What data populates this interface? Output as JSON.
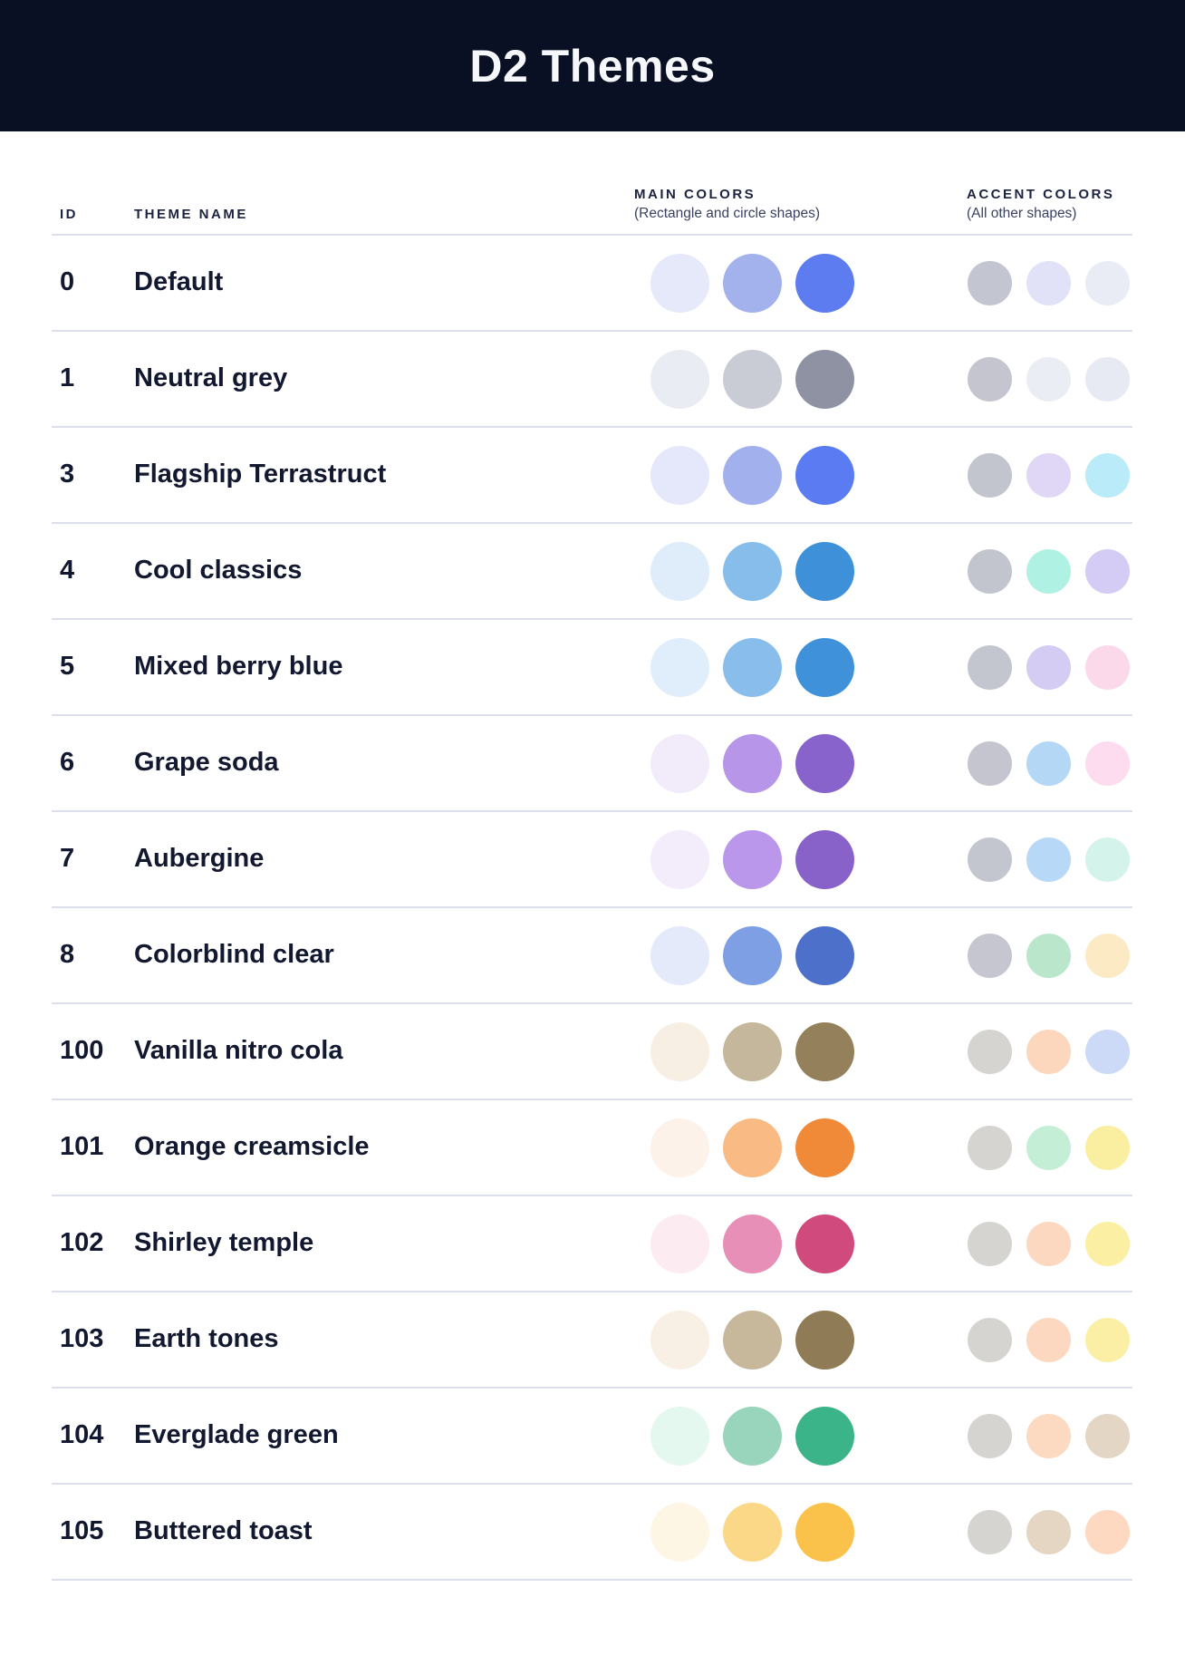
{
  "header": {
    "title": "D2 Themes",
    "bg": "#0A1023",
    "text_color": "#F5F7FB"
  },
  "columns": {
    "id_label": "ID",
    "theme_name_label": "THEME NAME",
    "main_colors_label": "MAIN COLORS",
    "main_colors_sub": "(Rectangle and circle shapes)",
    "accent_colors_label": "ACCENT COLORS",
    "accent_colors_sub": "(All other shapes)"
  },
  "themes": [
    {
      "id": "0",
      "name": "Default",
      "main": [
        "#E5E9F9",
        "#A3B2ED",
        "#5C7CF0"
      ],
      "accent": [
        "#C3C5D0",
        "#E1E2F8",
        "#E9EBF5"
      ]
    },
    {
      "id": "1",
      "name": "Neutral grey",
      "main": [
        "#EAECF3",
        "#CACCD5",
        "#8E92A3"
      ],
      "accent": [
        "#C4C5CF",
        "#EBEDF5",
        "#E8EAF3"
      ]
    },
    {
      "id": "3",
      "name": "Flagship Terrastruct",
      "main": [
        "#E4E8FA",
        "#A2B1EE",
        "#5A7BF2"
      ],
      "accent": [
        "#C2C4CE",
        "#E0D7F7",
        "#B9EBF8"
      ]
    },
    {
      "id": "4",
      "name": "Cool classics",
      "main": [
        "#DFEDFA",
        "#87BDEB",
        "#3E91D9"
      ],
      "accent": [
        "#C3C5CE",
        "#AFF1E2",
        "#D4CCF4"
      ]
    },
    {
      "id": "5",
      "name": "Mixed berry blue",
      "main": [
        "#DFEEFA",
        "#89BEEC",
        "#3F92DA"
      ],
      "accent": [
        "#C4C6CF",
        "#D4CCF3",
        "#FBD8EA"
      ]
    },
    {
      "id": "6",
      "name": "Grape soda",
      "main": [
        "#F1EBFA",
        "#B795E9",
        "#8763CB"
      ],
      "accent": [
        "#C4C5CF",
        "#B4D7F6",
        "#FCDCEE"
      ]
    },
    {
      "id": "7",
      "name": "Aubergine",
      "main": [
        "#F2ECFB",
        "#BA97EA",
        "#8962C9"
      ],
      "accent": [
        "#C4C6CF",
        "#B7D8F7",
        "#D4F3EA"
      ]
    },
    {
      "id": "8",
      "name": "Colorblind clear",
      "main": [
        "#E4EAF9",
        "#7E9FE4",
        "#4D70CA"
      ],
      "accent": [
        "#C5C6CF",
        "#BAE7CC",
        "#FBEAC4"
      ]
    },
    {
      "id": "100",
      "name": "Vanilla nitro cola",
      "main": [
        "#F7EFE4",
        "#C5B79B",
        "#94815C"
      ],
      "accent": [
        "#D6D4D1",
        "#FCD7BD",
        "#CCDAF7"
      ]
    },
    {
      "id": "101",
      "name": "Orange creamsicle",
      "main": [
        "#FDF2E9",
        "#F9BB83",
        "#F08938"
      ],
      "accent": [
        "#D6D4D1",
        "#C5EED6",
        "#FAEFA1"
      ]
    },
    {
      "id": "102",
      "name": "Shirley temple",
      "main": [
        "#FCEBF1",
        "#E78FB6",
        "#D04A7D"
      ],
      "accent": [
        "#D6D4D1",
        "#FCD8C0",
        "#FAEFA3"
      ]
    },
    {
      "id": "103",
      "name": "Earth tones",
      "main": [
        "#F8EFE5",
        "#C7B89C",
        "#8F7B55"
      ],
      "accent": [
        "#D6D4D1",
        "#FCD8C0",
        "#FAEFA4"
      ]
    },
    {
      "id": "104",
      "name": "Everglade green",
      "main": [
        "#E4F8F0",
        "#99D5BD",
        "#3CB489"
      ],
      "accent": [
        "#D6D4D1",
        "#FCD9C1",
        "#E4D6C5"
      ]
    },
    {
      "id": "105",
      "name": "Buttered toast",
      "main": [
        "#FDF6E4",
        "#FBD788",
        "#FAC24B"
      ],
      "accent": [
        "#D6D4D1",
        "#E4D6C3",
        "#FCD9C0"
      ]
    }
  ]
}
